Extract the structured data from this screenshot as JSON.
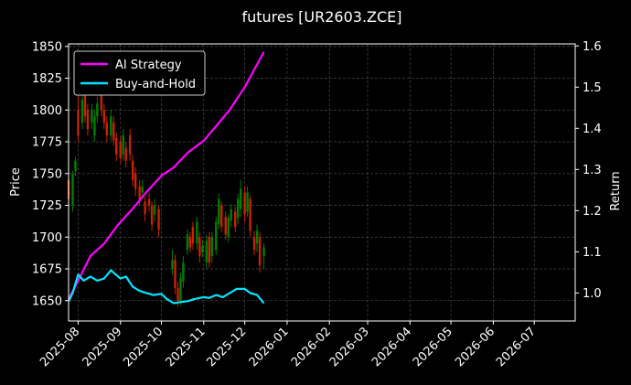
{
  "chart_data": {
    "type": "line",
    "title": "futures [UR2603.ZCE]",
    "ylabel": "Price",
    "y2label": "Return",
    "ylim": [
      1634,
      1852
    ],
    "y2lim": [
      0.932,
      1.605
    ],
    "xlim": [
      "2025-07-25",
      "2026-07-31"
    ],
    "yticks": [
      1650,
      1675,
      1700,
      1725,
      1750,
      1775,
      1800,
      1825,
      1850
    ],
    "y2ticks": [
      "1.0",
      "1.1",
      "1.2",
      "1.3",
      "1.4",
      "1.5",
      "1.6"
    ],
    "xticks": [
      "2025-08",
      "2025-09",
      "2025-10",
      "2025-11",
      "2025-12",
      "2026-01",
      "2026-02",
      "2026-03",
      "2026-04",
      "2026-05",
      "2026-06",
      "2026-07"
    ],
    "grid": true,
    "legend_position": "top-left",
    "colors": {
      "up": "#008000",
      "down": "#cc2200",
      "ai": "#ff00ff",
      "bh": "#00e5ff"
    },
    "series": [
      {
        "name": "AI Strategy",
        "axis": "right",
        "x": [
          "2025-07-25",
          "2025-08-01",
          "2025-08-10",
          "2025-08-20",
          "2025-08-30",
          "2025-09-10",
          "2025-09-20",
          "2025-10-01",
          "2025-10-10",
          "2025-10-20",
          "2025-11-01",
          "2025-11-10",
          "2025-11-20",
          "2025-12-01",
          "2025-12-10",
          "2025-12-15"
        ],
        "values": [
          0.985,
          1.03,
          1.09,
          1.12,
          1.165,
          1.205,
          1.245,
          1.285,
          1.305,
          1.34,
          1.37,
          1.405,
          1.445,
          1.5,
          1.555,
          1.585
        ]
      },
      {
        "name": "Buy-and-Hold",
        "axis": "right",
        "x": [
          "2025-07-25",
          "2025-07-28",
          "2025-08-01",
          "2025-08-05",
          "2025-08-10",
          "2025-08-15",
          "2025-08-20",
          "2025-08-25",
          "2025-09-01",
          "2025-09-05",
          "2025-09-10",
          "2025-09-15",
          "2025-09-20",
          "2025-09-25",
          "2025-10-01",
          "2025-10-05",
          "2025-10-10",
          "2025-10-15",
          "2025-10-20",
          "2025-10-25",
          "2025-11-01",
          "2025-11-05",
          "2025-11-10",
          "2025-11-15",
          "2025-11-20",
          "2025-11-25",
          "2025-12-01",
          "2025-12-05",
          "2025-12-10",
          "2025-12-15"
        ],
        "values": [
          0.98,
          1.0,
          1.045,
          1.03,
          1.04,
          1.03,
          1.035,
          1.055,
          1.035,
          1.04,
          1.015,
          1.005,
          1.0,
          0.995,
          0.998,
          0.985,
          0.975,
          0.978,
          0.98,
          0.985,
          0.99,
          0.988,
          0.995,
          0.99,
          1.0,
          1.01,
          1.01,
          1.0,
          0.995,
          0.975
        ]
      }
    ],
    "candles": {
      "date": [
        "2025-07-25",
        "2025-07-28",
        "2025-07-30",
        "2025-08-01",
        "2025-08-04",
        "2025-08-06",
        "2025-08-08",
        "2025-08-11",
        "2025-08-13",
        "2025-08-15",
        "2025-08-18",
        "2025-08-20",
        "2025-08-22",
        "2025-08-25",
        "2025-08-27",
        "2025-08-29",
        "2025-09-01",
        "2025-09-03",
        "2025-09-05",
        "2025-09-08",
        "2025-09-10",
        "2025-09-12",
        "2025-09-15",
        "2025-09-17",
        "2025-09-19",
        "2025-09-22",
        "2025-09-24",
        "2025-09-26",
        "2025-09-29",
        "2025-10-09",
        "2025-10-11",
        "2025-10-13",
        "2025-10-15",
        "2025-10-17",
        "2025-10-20",
        "2025-10-22",
        "2025-10-24",
        "2025-10-27",
        "2025-10-29",
        "2025-10-31",
        "2025-11-03",
        "2025-11-05",
        "2025-11-07",
        "2025-11-10",
        "2025-11-12",
        "2025-11-14",
        "2025-11-17",
        "2025-11-19",
        "2025-11-21",
        "2025-11-24",
        "2025-11-26",
        "2025-11-28",
        "2025-12-01",
        "2025-12-03",
        "2025-12-05",
        "2025-12-08",
        "2025-12-10",
        "2025-12-12",
        "2025-12-15"
      ],
      "open": [
        1745,
        1725,
        1752,
        1800,
        1790,
        1812,
        1800,
        1790,
        1780,
        1795,
        1815,
        1800,
        1790,
        1780,
        1790,
        1778,
        1775,
        1765,
        1770,
        1780,
        1760,
        1750,
        1740,
        1735,
        1728,
        1730,
        1725,
        1718,
        1722,
        1675,
        1682,
        1660,
        1650,
        1665,
        1690,
        1700,
        1708,
        1695,
        1700,
        1688,
        1680,
        1700,
        1685,
        1690,
        1710,
        1725,
        1716,
        1700,
        1713,
        1720,
        1715,
        1722,
        1735,
        1720,
        1730,
        1700,
        1695,
        1700,
        1685
      ],
      "close": [
        1730,
        1750,
        1760,
        1780,
        1808,
        1795,
        1785,
        1800,
        1795,
        1805,
        1800,
        1790,
        1780,
        1795,
        1776,
        1765,
        1762,
        1780,
        1760,
        1765,
        1745,
        1738,
        1730,
        1740,
        1718,
        1725,
        1710,
        1725,
        1706,
        1682,
        1660,
        1650,
        1668,
        1680,
        1702,
        1692,
        1695,
        1712,
        1685,
        1693,
        1697,
        1680,
        1700,
        1712,
        1730,
        1708,
        1702,
        1715,
        1722,
        1708,
        1730,
        1738,
        1718,
        1735,
        1705,
        1690,
        1705,
        1678,
        1692
      ],
      "high": [
        1750,
        1752,
        1763,
        1812,
        1815,
        1818,
        1805,
        1805,
        1800,
        1810,
        1822,
        1805,
        1795,
        1800,
        1795,
        1782,
        1780,
        1785,
        1775,
        1785,
        1765,
        1755,
        1745,
        1745,
        1732,
        1735,
        1728,
        1730,
        1725,
        1690,
        1686,
        1665,
        1672,
        1685,
        1706,
        1704,
        1712,
        1716,
        1704,
        1698,
        1702,
        1704,
        1704,
        1716,
        1734,
        1728,
        1720,
        1718,
        1726,
        1724,
        1734,
        1745,
        1740,
        1740,
        1733,
        1705,
        1710,
        1704,
        1695
      ],
      "low": [
        1728,
        1720,
        1748,
        1775,
        1785,
        1790,
        1780,
        1785,
        1775,
        1790,
        1795,
        1785,
        1775,
        1776,
        1772,
        1760,
        1758,
        1760,
        1755,
        1760,
        1740,
        1732,
        1725,
        1730,
        1712,
        1720,
        1705,
        1712,
        1700,
        1670,
        1655,
        1645,
        1646,
        1660,
        1686,
        1688,
        1690,
        1690,
        1680,
        1684,
        1675,
        1676,
        1680,
        1686,
        1706,
        1704,
        1698,
        1696,
        1708,
        1704,
        1710,
        1716,
        1712,
        1716,
        1700,
        1686,
        1688,
        1672,
        1675
      ]
    }
  }
}
